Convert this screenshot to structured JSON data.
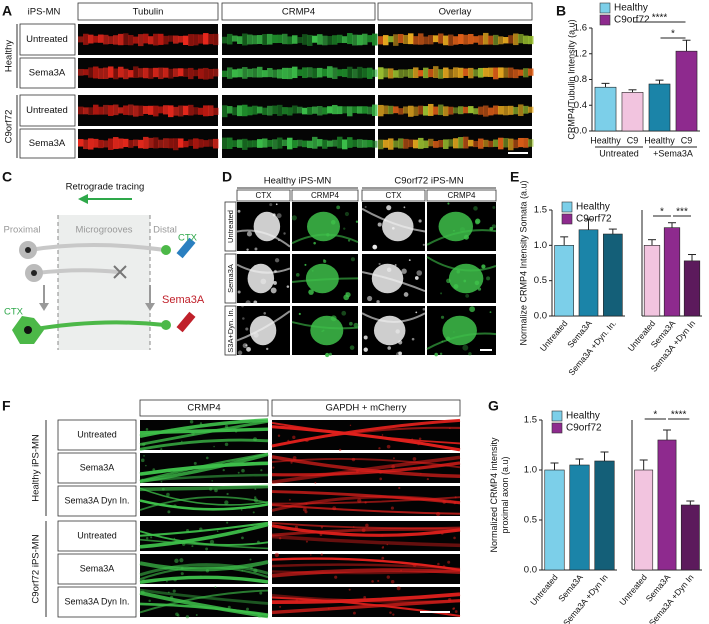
{
  "panel_letters": [
    "A",
    "B",
    "C",
    "D",
    "E",
    "F",
    "G"
  ],
  "panel_a": {
    "header": "iPS-MN",
    "columns": [
      "Tubulin",
      "CRMP4",
      "Overlay"
    ],
    "groups": [
      {
        "label": "Healthy",
        "rows": [
          "Untreated",
          "Sema3A"
        ]
      },
      {
        "label": "C9orf72",
        "rows": [
          "Untreated",
          "Sema3A"
        ]
      }
    ]
  },
  "panel_c": {
    "title": "Retrograde tracing",
    "labels": [
      "Proximal",
      "Microgrooves",
      "Distal"
    ],
    "ctx_distal": "CTX",
    "ctx_soma": "CTX",
    "treatment": "Sema3A"
  },
  "panel_d": {
    "groups": [
      {
        "label": "Healthy iPS-MN",
        "columns": [
          "CTX",
          "CRMP4"
        ]
      },
      {
        "label": "C9orf72 iPS-MN",
        "columns": [
          "CTX",
          "CRMP4"
        ]
      }
    ],
    "rows": [
      "Untreated",
      "Sema3A",
      "S3A+Dyn. In."
    ]
  },
  "panel_f": {
    "columns": [
      "CRMP4",
      "GAPDH + mCherry"
    ],
    "groups": [
      {
        "label": "Healthy iPS-MN",
        "rows": [
          "Untreated",
          "Sema3A",
          "Sema3A Dyn In."
        ]
      },
      {
        "label": "C9orf72 iPS-MN",
        "rows": [
          "Untreated",
          "Sema3A",
          "Sema3A Dyn In."
        ]
      }
    ]
  },
  "chart_data": [
    {
      "type": "bar",
      "ylabel": "CRMP4/Tubulin Intensity (a.u)",
      "legend": [
        {
          "name": "Healthy",
          "color": "#7ccfe9"
        },
        {
          "name": "C9orf72",
          "color": "#8e2a8e"
        }
      ],
      "categories": [
        "Healthy",
        "C9",
        "Healthy",
        "C9"
      ],
      "groups": [
        "Untreated",
        "+Sema3A"
      ],
      "values": [
        0.68,
        0.6,
        0.73,
        1.24
      ],
      "errors": [
        0.06,
        0.04,
        0.06,
        0.17
      ],
      "colors": [
        "#7ccfe9",
        "#f2c4df",
        "#1b84a8",
        "#8e2a8e"
      ],
      "ylim": [
        0,
        1.6
      ],
      "yticks": [
        {
          "value": 0,
          "label": "0.0"
        },
        0.4,
        0.8,
        1.2,
        1.6
      ],
      "annotations": [
        "****",
        "*"
      ]
    },
    {
      "type": "bar",
      "ylabel": "Normalize CRMP4 Intensity Somata (a.u)",
      "legend": [
        {
          "name": "Healthy",
          "color": "#7ccfe9"
        },
        {
          "name": "C9orf72",
          "color": "#8e2a8e"
        }
      ],
      "categories": [
        "Untreated",
        "Sema3A",
        "Sema3A +Dyn. In."
      ],
      "values": [
        1.0,
        1.22,
        1.16
      ],
      "errors": [
        0.12,
        0.15,
        0.07
      ],
      "colors": [
        "#7ccfe9",
        "#1b84a8",
        "#145f78"
      ],
      "ylim": [
        0,
        1.5
      ],
      "yticks": [
        {
          "value": 0,
          "label": "0.0"
        },
        0.5,
        {
          "value": 1,
          "label": "1.0"
        },
        1.5
      ]
    },
    {
      "type": "bar",
      "categories": [
        "Untreated",
        "Sema3A",
        "Sema3A +Dyn In"
      ],
      "values": [
        1.0,
        1.25,
        0.78
      ],
      "errors": [
        0.08,
        0.07,
        0.09
      ],
      "colors": [
        "#f2c4df",
        "#8e2a8e",
        "#5c1a5c"
      ],
      "ylim": [
        0,
        1.5
      ],
      "annotations": [
        "*",
        "***"
      ]
    },
    {
      "type": "bar",
      "ylabel": [
        "Normalized CRMP4 intensity",
        "proximal axon (a.u)"
      ],
      "legend": [
        {
          "name": "Healthy",
          "color": "#7ccfe9"
        },
        {
          "name": "C9orf72",
          "color": "#8e2a8e"
        }
      ],
      "categories": [
        "Untreated",
        "Sema3A",
        "Sema3A +Dyn In"
      ],
      "values": [
        1.0,
        1.05,
        1.09
      ],
      "errors": [
        0.07,
        0.06,
        0.09
      ],
      "colors": [
        "#7ccfe9",
        "#1b84a8",
        "#145f78"
      ],
      "ylim": [
        0,
        1.5
      ],
      "yticks": [
        {
          "value": 0,
          "label": "0.0"
        },
        0.5,
        {
          "value": 1,
          "label": "1.0"
        },
        1.5
      ]
    },
    {
      "type": "bar",
      "categories": [
        "Untreated",
        "Sema3A",
        "Sema3A +Dyn In"
      ],
      "values": [
        1.0,
        1.3,
        0.65
      ],
      "errors": [
        0.1,
        0.1,
        0.04
      ],
      "colors": [
        "#f2c4df",
        "#8e2a8e",
        "#5c1a5c"
      ],
      "ylim": [
        0,
        1.5
      ],
      "annotations": [
        "*",
        "****"
      ]
    }
  ]
}
